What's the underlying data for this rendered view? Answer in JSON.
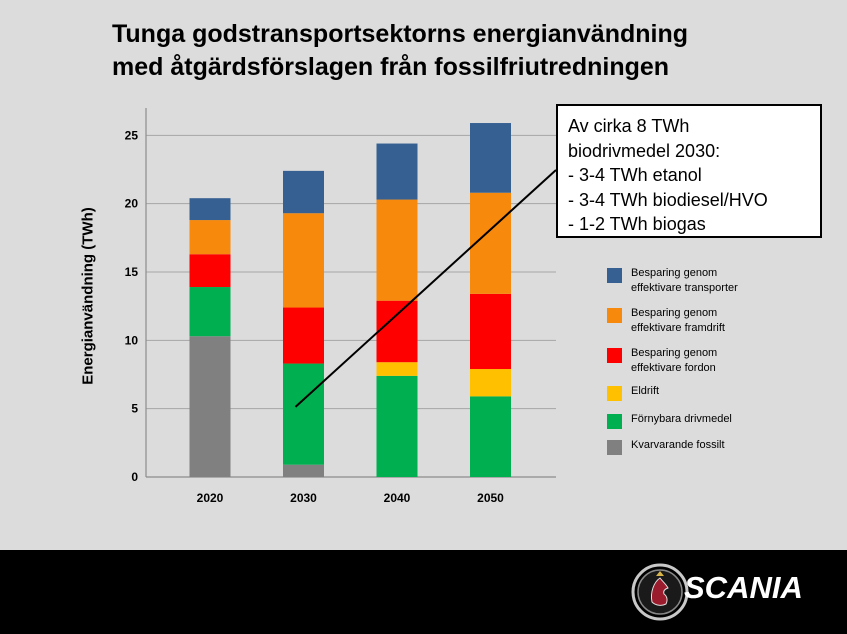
{
  "slide": {
    "title_line1": "Tunga godstransportsektorns energianvändning",
    "title_line2": "med åtgärdsförslagen från fossilfriutredningen"
  },
  "callout": {
    "lines": [
      "Av cirka 8 TWh",
      "biodrivmedel 2030:",
      "- 3-4 TWh etanol",
      "- 3-4 TWh biodiesel/HVO",
      "- 1-2 TWh biogas"
    ]
  },
  "brand": {
    "logo_text": "SCANIA"
  },
  "chart_data": {
    "type": "bar",
    "stacked": true,
    "title": "Tunga godstransportsektorns energianvändning med åtgärdsförslagen från fossilfriutredningen",
    "xlabel": "",
    "ylabel": "Energianvändning (TWh)",
    "ylim": [
      0,
      27
    ],
    "yticks": [
      0,
      5,
      10,
      15,
      20,
      25
    ],
    "grid": true,
    "legend_position": "right",
    "categories": [
      "2020",
      "2030",
      "2040",
      "2050"
    ],
    "series": [
      {
        "name": "Kvarvarande fossilt",
        "color": "#808080",
        "values": [
          10.3,
          0.9,
          0,
          0
        ]
      },
      {
        "name": "Förnybara drivmedel",
        "color": "#00b050",
        "values": [
          3.6,
          7.4,
          7.4,
          5.9
        ]
      },
      {
        "name": "Eldrift",
        "color": "#ffc000",
        "values": [
          0,
          0,
          1.0,
          2.0
        ]
      },
      {
        "name": "Besparing genom effektivare fordon",
        "color": "#ff0000",
        "values": [
          2.4,
          4.1,
          4.5,
          5.5
        ]
      },
      {
        "name": "Besparing genom effektivare framdrift",
        "color": "#f7890c",
        "values": [
          2.5,
          6.9,
          7.4,
          7.4
        ]
      },
      {
        "name": "Besparing genom effektivare transporter",
        "color": "#366092",
        "values": [
          1.6,
          3.1,
          4.1,
          5.1
        ]
      }
    ],
    "legend_order": [
      "Besparing genom effektivare transporter",
      "Besparing genom effektivare framdrift",
      "Besparing genom effektivare fordon",
      "Eldrift",
      "Förnybara drivmedel",
      "Kvarvarande fossilt"
    ],
    "legend_labels": [
      [
        "Besparing genom",
        "effektivare transporter"
      ],
      [
        "Besparing genom",
        "effektivare framdrift"
      ],
      [
        "Besparing genom",
        "effektivare fordon"
      ],
      [
        "Eldrift"
      ],
      [
        "Förnybara drivmedel"
      ],
      [
        "Kvarvarande fossilt"
      ]
    ],
    "annotation": {
      "points_to_category": "2030",
      "points_to_value": 5.5
    }
  }
}
